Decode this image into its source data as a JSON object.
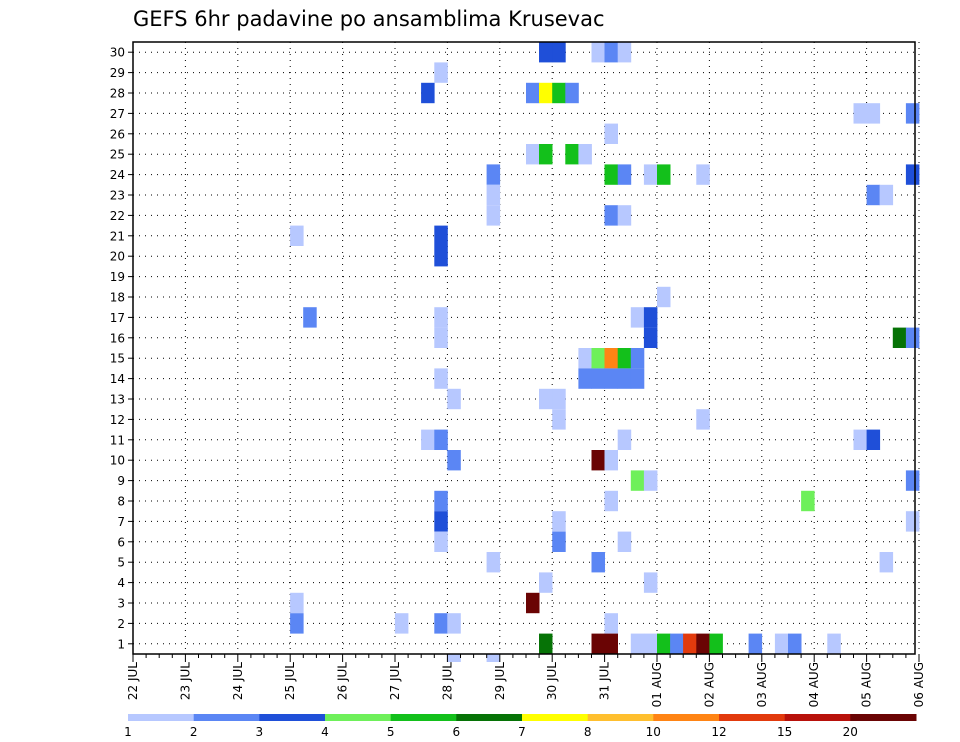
{
  "chart_data": {
    "type": "heatmap",
    "title": "GEFS 6hr padavine po ansamblima Krusevac",
    "xlabel": "",
    "ylabel": "",
    "x_axis": {
      "unit": "6-hour steps from 22 JUL 00Z",
      "range_steps": [
        0,
        59.5
      ],
      "tick_labels": [
        "22 JUL",
        "23 JUL",
        "24 JUL",
        "25 JUL",
        "26 JUL",
        "27 JUL",
        "28 JUL",
        "29 JUL",
        "30 JUL",
        "31 JUL",
        "01 AUG",
        "02 AUG",
        "03 AUG",
        "04 AUG",
        "05 AUG",
        "06 AUG"
      ]
    },
    "y_axis": {
      "unit": "ensemble member",
      "range": [
        0.5,
        30.5
      ],
      "tick_labels": [
        "1",
        "2",
        "3",
        "4",
        "5",
        "6",
        "7",
        "8",
        "9",
        "10",
        "11",
        "12",
        "13",
        "14",
        "15",
        "16",
        "17",
        "18",
        "19",
        "20",
        "21",
        "22",
        "23",
        "24",
        "25",
        "26",
        "27",
        "28",
        "29",
        "30"
      ]
    },
    "grid": true,
    "colorbar": {
      "placement": "bottom",
      "labels": [
        "1",
        "2",
        "3",
        "4",
        "5",
        "6",
        "7",
        "8",
        "10",
        "12",
        "15",
        "20"
      ],
      "colors": [
        "#b7c8ff",
        "#5b86f4",
        "#1f4fd8",
        "#6ef05a",
        "#13c01b",
        "#067306",
        "#ffff00",
        "#ffbf2e",
        "#ff8414",
        "#e23a0d",
        "#b8110b",
        "#6a0404"
      ]
    },
    "cells_note": "each cell: [time step (6h from 22 JUL 00Z), member, color class index into colorbar.colors]",
    "cells": [
      [
        31,
        30,
        2
      ],
      [
        32,
        30,
        2
      ],
      [
        35,
        30,
        0
      ],
      [
        36,
        30,
        1
      ],
      [
        37,
        30,
        0
      ],
      [
        23,
        29,
        0
      ],
      [
        22,
        28,
        2
      ],
      [
        30,
        28,
        1
      ],
      [
        31,
        28,
        6
      ],
      [
        32,
        28,
        4
      ],
      [
        33,
        28,
        1
      ],
      [
        55,
        27,
        0
      ],
      [
        56,
        27,
        0
      ],
      [
        59,
        27,
        1
      ],
      [
        36,
        26,
        0
      ],
      [
        30,
        25,
        0
      ],
      [
        31,
        25,
        4
      ],
      [
        33,
        25,
        4
      ],
      [
        34,
        25,
        0
      ],
      [
        27,
        24,
        1
      ],
      [
        36,
        24,
        4
      ],
      [
        37,
        24,
        1
      ],
      [
        39,
        24,
        0
      ],
      [
        40,
        24,
        4
      ],
      [
        43,
        24,
        0
      ],
      [
        59,
        24,
        2
      ],
      [
        27,
        23,
        0
      ],
      [
        56,
        23,
        1
      ],
      [
        57,
        23,
        0
      ],
      [
        27,
        22,
        0
      ],
      [
        36,
        22,
        1
      ],
      [
        37,
        22,
        0
      ],
      [
        12,
        21,
        0
      ],
      [
        23,
        21,
        2
      ],
      [
        23,
        20,
        2
      ],
      [
        40,
        18,
        0
      ],
      [
        13,
        17,
        1
      ],
      [
        23,
        17,
        0
      ],
      [
        38,
        17,
        0
      ],
      [
        39,
        17,
        2
      ],
      [
        23,
        16,
        0
      ],
      [
        39,
        16,
        2
      ],
      [
        58,
        16,
        5
      ],
      [
        59,
        16,
        1
      ],
      [
        34,
        15,
        0
      ],
      [
        35,
        15,
        3
      ],
      [
        36,
        15,
        8
      ],
      [
        37,
        15,
        4
      ],
      [
        38,
        15,
        1
      ],
      [
        23,
        14,
        0
      ],
      [
        34,
        14,
        1
      ],
      [
        35,
        14,
        1
      ],
      [
        36,
        14,
        1
      ],
      [
        37,
        14,
        1
      ],
      [
        38,
        14,
        1
      ],
      [
        24,
        13,
        0
      ],
      [
        31,
        13,
        0
      ],
      [
        32,
        13,
        0
      ],
      [
        32,
        12,
        0
      ],
      [
        43,
        12,
        0
      ],
      [
        22,
        11,
        0
      ],
      [
        23,
        11,
        1
      ],
      [
        37,
        11,
        0
      ],
      [
        55,
        11,
        0
      ],
      [
        56,
        11,
        2
      ],
      [
        24,
        10,
        1
      ],
      [
        35,
        10,
        11
      ],
      [
        36,
        10,
        0
      ],
      [
        38,
        9,
        3
      ],
      [
        39,
        9,
        0
      ],
      [
        59,
        9,
        1
      ],
      [
        23,
        8,
        1
      ],
      [
        36,
        8,
        0
      ],
      [
        51,
        8,
        3
      ],
      [
        23,
        7,
        2
      ],
      [
        32,
        7,
        0
      ],
      [
        59,
        7,
        0
      ],
      [
        23,
        6,
        0
      ],
      [
        32,
        6,
        1
      ],
      [
        37,
        6,
        0
      ],
      [
        27,
        5,
        0
      ],
      [
        35,
        5,
        1
      ],
      [
        57,
        5,
        0
      ],
      [
        31,
        4,
        0
      ],
      [
        39,
        4,
        0
      ],
      [
        12,
        3,
        0
      ],
      [
        30,
        3,
        11
      ],
      [
        12,
        2,
        1
      ],
      [
        20,
        2,
        0
      ],
      [
        23,
        2,
        1
      ],
      [
        24,
        2,
        0
      ],
      [
        36,
        2,
        0
      ],
      [
        31,
        1,
        5
      ],
      [
        35,
        1,
        11
      ],
      [
        36,
        1,
        11
      ],
      [
        38,
        1,
        0
      ],
      [
        39,
        1,
        0
      ],
      [
        40,
        1,
        4
      ],
      [
        41,
        1,
        1
      ],
      [
        42,
        1,
        9
      ],
      [
        43,
        1,
        11
      ],
      [
        44,
        1,
        4
      ],
      [
        47,
        1,
        1
      ],
      [
        49,
        1,
        0
      ],
      [
        50,
        1,
        1
      ],
      [
        53,
        1,
        0
      ],
      [
        24,
        0,
        0
      ],
      [
        27,
        0,
        0
      ]
    ]
  }
}
